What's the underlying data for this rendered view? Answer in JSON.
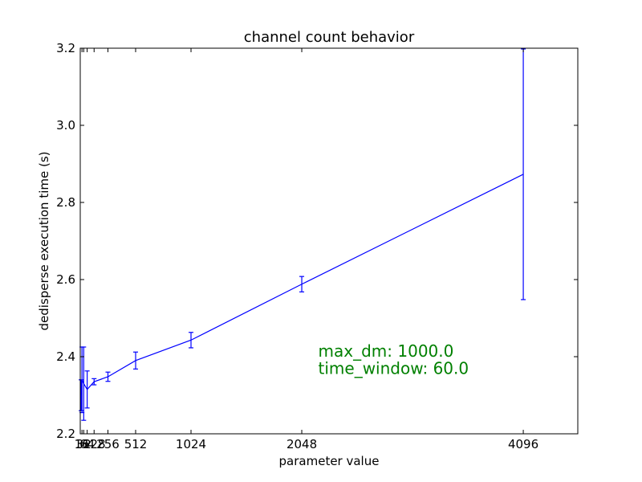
{
  "chart_data": {
    "type": "line",
    "title": "channel count behavior",
    "xlabel": "parameter value",
    "ylabel": "dedisperse execution time (s)",
    "xlim": [
      0,
      4600
    ],
    "ylim": [
      2.2,
      3.2
    ],
    "xticks": [
      16,
      32,
      64,
      128,
      256,
      512,
      1024,
      2048,
      4096
    ],
    "xtick_labels": [
      "16",
      "32",
      "64",
      "128",
      "256",
      "512",
      "1024",
      "2048",
      "4096"
    ],
    "yticks": [
      2.2,
      2.4,
      2.6,
      2.8,
      3.0,
      3.2
    ],
    "ytick_labels": [
      "2.2",
      "2.4",
      "2.6",
      "2.8",
      "3.0",
      "3.2"
    ],
    "grid": false,
    "series": [
      {
        "color": "#0000ff",
        "x": [
          8,
          16,
          32,
          64,
          128,
          256,
          512,
          1024,
          2048,
          4096
        ],
        "y": [
          2.3,
          2.34,
          2.33,
          2.315,
          2.335,
          2.348,
          2.39,
          2.443,
          2.588,
          2.873
        ],
        "yerr": [
          0.04,
          0.085,
          0.095,
          0.048,
          0.008,
          0.012,
          0.022,
          0.02,
          0.02,
          0.325
        ]
      }
    ],
    "annotations": [
      {
        "text": "max_dm: 1000.0",
        "color": "#008000",
        "x": 2200,
        "y": 2.4
      },
      {
        "text": "time_window: 60.0",
        "color": "#008000",
        "x": 2200,
        "y": 2.355
      }
    ]
  }
}
